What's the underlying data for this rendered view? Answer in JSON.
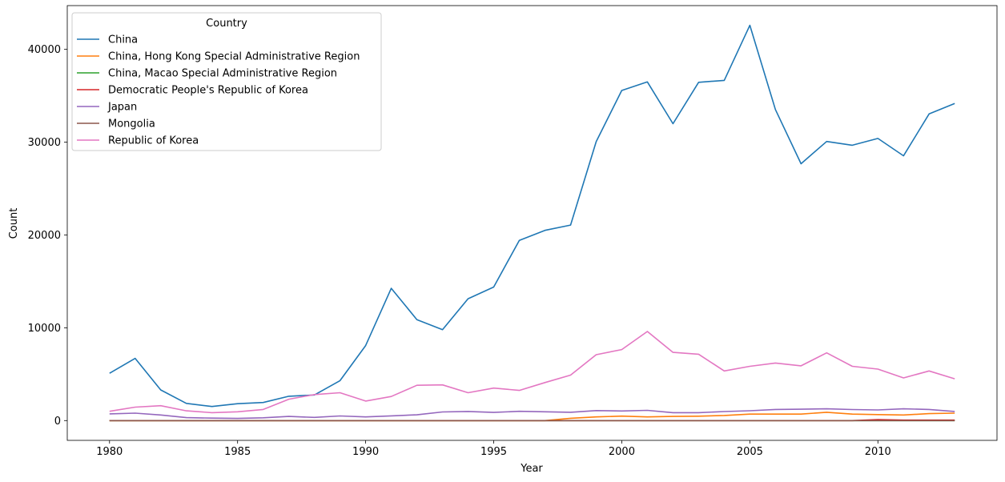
{
  "chart_data": {
    "type": "line",
    "xlabel": "Year",
    "ylabel": "Count",
    "xlim": [
      1978.35,
      1214.65
    ],
    "ylim": [
      -2132,
      44715
    ],
    "xticks": [
      1980,
      1985,
      1990,
      1995,
      2000,
      2005,
      2010
    ],
    "yticks": [
      0,
      10000,
      20000,
      30000,
      40000
    ],
    "legend": {
      "title": "Country",
      "placement": "upper left"
    },
    "x": [
      1980,
      1981,
      1982,
      1983,
      1984,
      1985,
      1986,
      1987,
      1988,
      1989,
      1990,
      1991,
      1992,
      1993,
      1994,
      1995,
      1996,
      1997,
      1998,
      1999,
      2000,
      2001,
      2002,
      2003,
      2004,
      2005,
      2006,
      2007,
      2008,
      2009,
      2010,
      2011,
      2012,
      2013
    ],
    "series": [
      {
        "name": "China",
        "color": "#1f77b4",
        "values": [
          5100,
          6700,
          3300,
          1850,
          1520,
          1820,
          1950,
          2620,
          2760,
          4300,
          8080,
          14250,
          10880,
          9800,
          13130,
          14390,
          19420,
          20500,
          21070,
          30060,
          35570,
          36490,
          31990,
          36450,
          36660,
          42590,
          33520,
          27680,
          30070,
          29670,
          30400,
          28530,
          33040,
          34160
        ]
      },
      {
        "name": "China, Hong Kong Special Administrative Region",
        "color": "#ff7f0e",
        "values": [
          0,
          0,
          0,
          0,
          0,
          0,
          0,
          0,
          0,
          0,
          0,
          0,
          0,
          0,
          0,
          0,
          0,
          0,
          250,
          400,
          480,
          400,
          450,
          470,
          550,
          700,
          700,
          700,
          900,
          700,
          650,
          600,
          750,
          800
        ]
      },
      {
        "name": "China, Macao Special Administrative Region",
        "color": "#2ca02c",
        "values": [
          0,
          0,
          0,
          0,
          0,
          0,
          0,
          0,
          0,
          0,
          0,
          0,
          0,
          0,
          0,
          0,
          0,
          0,
          0,
          0,
          0,
          0,
          0,
          0,
          0,
          0,
          0,
          0,
          0,
          0,
          0,
          0,
          0,
          0
        ]
      },
      {
        "name": "Democratic People's Republic of Korea",
        "color": "#d62728",
        "values": [
          0,
          0,
          0,
          0,
          0,
          0,
          0,
          0,
          0,
          0,
          0,
          0,
          0,
          0,
          0,
          0,
          0,
          0,
          0,
          0,
          0,
          0,
          0,
          0,
          0,
          0,
          0,
          0,
          0,
          0,
          100,
          50,
          50,
          50
        ]
      },
      {
        "name": "Japan",
        "color": "#9467bd",
        "values": [
          720,
          800,
          600,
          320,
          270,
          230,
          300,
          450,
          340,
          500,
          400,
          510,
          620,
          930,
          980,
          880,
          1000,
          950,
          900,
          1080,
          1030,
          1100,
          850,
          850,
          970,
          1060,
          1200,
          1220,
          1270,
          1190,
          1150,
          1270,
          1200,
          980
        ]
      },
      {
        "name": "Mongolia",
        "color": "#8c564b",
        "values": [
          0,
          0,
          0,
          0,
          0,
          0,
          0,
          0,
          0,
          0,
          0,
          0,
          0,
          0,
          0,
          0,
          0,
          0,
          0,
          0,
          0,
          0,
          0,
          0,
          0,
          0,
          0,
          0,
          0,
          0,
          0,
          0,
          0,
          0
        ]
      },
      {
        "name": "Republic of Korea",
        "color": "#e377c2",
        "values": [
          1000,
          1450,
          1600,
          1050,
          850,
          950,
          1200,
          2300,
          2800,
          3000,
          2100,
          2600,
          3800,
          3850,
          3000,
          3500,
          3250,
          4100,
          4900,
          7100,
          7650,
          9600,
          7350,
          7150,
          5350,
          5850,
          6200,
          5900,
          7300,
          5850,
          5550,
          4600,
          5350,
          4500
        ]
      }
    ]
  }
}
